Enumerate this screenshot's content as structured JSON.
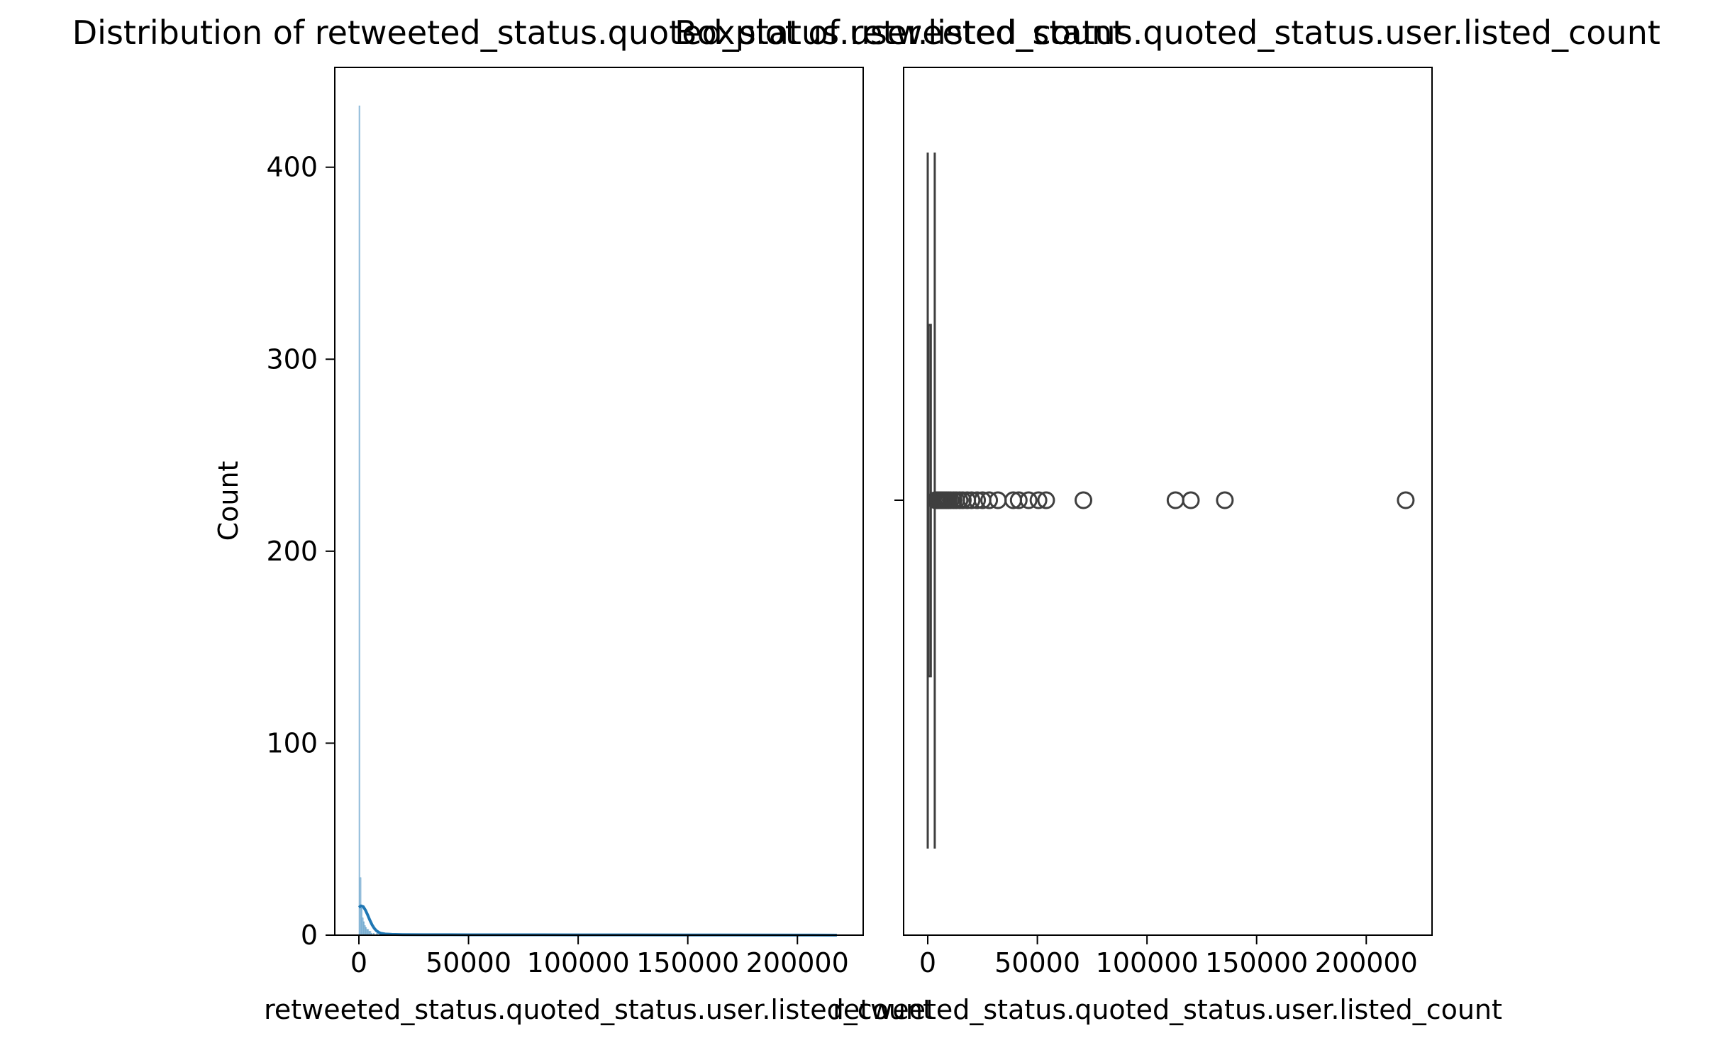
{
  "chart_data": [
    {
      "type": "histogram",
      "title": "Distribution of retweeted_status.quoted_status.user.listed_count",
      "xlabel": "retweeted_status.quoted_status.user.listed_count",
      "ylabel": "Count",
      "xlim": [
        -11000,
        230000
      ],
      "ylim": [
        0,
        452
      ],
      "x_ticks": [
        0,
        50000,
        100000,
        150000,
        200000
      ],
      "x_tick_labels": [
        "0",
        "50000",
        "100000",
        "150000",
        "200000"
      ],
      "y_ticks": [
        0,
        100,
        200,
        300,
        400
      ],
      "y_tick_labels": [
        "0",
        "100",
        "200",
        "300",
        "400"
      ],
      "bar_color": "#1f77b4",
      "bar_opacity": 0.35,
      "bins": [
        {
          "x0": 0,
          "x1": 500,
          "count": 432
        },
        {
          "x0": 500,
          "x1": 1000,
          "count": 30
        },
        {
          "x0": 1000,
          "x1": 1500,
          "count": 14
        },
        {
          "x0": 1500,
          "x1": 2000,
          "count": 9
        },
        {
          "x0": 2000,
          "x1": 2500,
          "count": 7
        },
        {
          "x0": 2500,
          "x1": 3000,
          "count": 5
        },
        {
          "x0": 3000,
          "x1": 3500,
          "count": 4
        },
        {
          "x0": 3500,
          "x1": 4000,
          "count": 3
        },
        {
          "x0": 4000,
          "x1": 4500,
          "count": 3
        },
        {
          "x0": 4500,
          "x1": 5000,
          "count": 2
        },
        {
          "x0": 5000,
          "x1": 5500,
          "count": 2
        },
        {
          "x0": 5500,
          "x1": 6000,
          "count": 1
        },
        {
          "x0": 6500,
          "x1": 7000,
          "count": 1
        },
        {
          "x0": 8000,
          "x1": 8500,
          "count": 1
        },
        {
          "x0": 10000,
          "x1": 10500,
          "count": 1
        }
      ],
      "kde": {
        "color": "#1f77b4",
        "x": [
          0,
          1000,
          2000,
          3000,
          4000,
          5000,
          6000,
          7000,
          8000,
          9000,
          10000,
          12000,
          15000,
          20000,
          30000,
          50000,
          100000,
          150000,
          200000,
          218000
        ],
        "y": [
          14.5,
          15.2,
          14.8,
          13.0,
          10.5,
          7.8,
          5.4,
          3.6,
          2.3,
          1.5,
          1.0,
          0.6,
          0.4,
          0.3,
          0.25,
          0.2,
          0.15,
          0.1,
          0.05,
          0.0
        ]
      }
    },
    {
      "type": "boxplot",
      "title": "Boxplot of retweeted_status.quoted_status.user.listed_count",
      "xlabel": "retweeted_status.quoted_status.user.listed_count",
      "ylabel": "",
      "xlim": [
        -11000,
        230000
      ],
      "x_ticks": [
        0,
        50000,
        100000,
        150000,
        200000
      ],
      "x_tick_labels": [
        "0",
        "50000",
        "100000",
        "150000",
        "200000"
      ],
      "color": "#3f3f3f",
      "whisker_low": 0,
      "q1": 150,
      "median": 400,
      "q3": 1400,
      "whisker_high": 3200,
      "outliers": [
        3600,
        4200,
        4800,
        5500,
        6200,
        7000,
        7800,
        8600,
        9500,
        10500,
        11800,
        13000,
        14500,
        16000,
        18000,
        20000,
        22500,
        25000,
        28000,
        32000,
        39000,
        41500,
        46000,
        50500,
        54000,
        71000,
        113000,
        120000,
        135500,
        218000
      ]
    }
  ]
}
